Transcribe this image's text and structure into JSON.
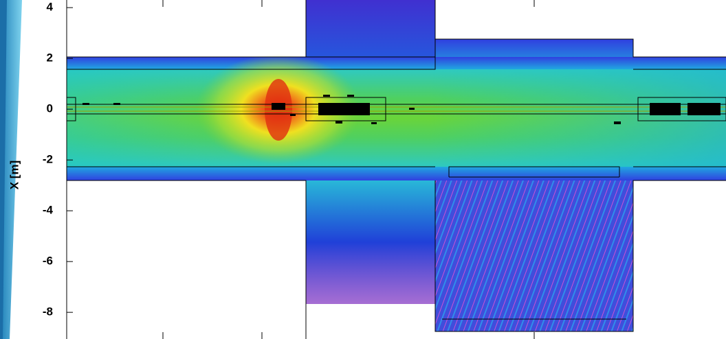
{
  "chart_data": {
    "type": "heatmap",
    "ylabel": "X [m]",
    "ylim": [
      -9.05,
      4.3
    ],
    "yticks": [
      4,
      2,
      0,
      -2,
      -4,
      -6,
      -8
    ]
  }
}
